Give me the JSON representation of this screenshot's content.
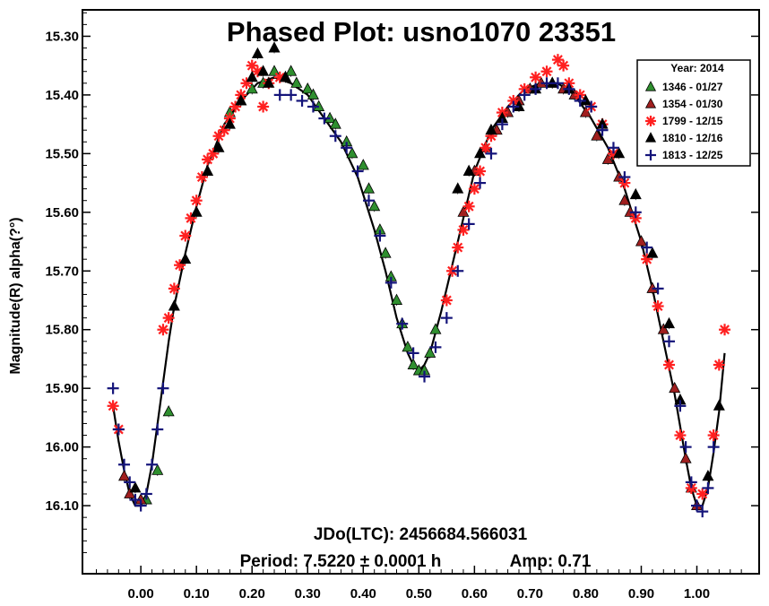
{
  "chart_data": {
    "type": "scatter",
    "title": "Phased Plot: usno1070 23351",
    "ylabel": "Magnitude(R) alpha(?°)",
    "xlabel": "",
    "xlim": [
      -0.105,
      1.112
    ],
    "ylim": [
      16.216,
      15.255
    ],
    "y_inverted": true,
    "grid": false,
    "legend_placement": "top-right",
    "x_ticks": [
      0.0,
      0.1,
      0.2,
      0.3,
      0.4,
      0.5,
      0.6,
      0.7,
      0.8,
      0.9,
      1.0
    ],
    "x_tick_labels": [
      "0.00",
      "0.10",
      "0.20",
      "0.30",
      "0.40",
      "0.50",
      "0.60",
      "0.70",
      "0.80",
      "0.90",
      "1.00"
    ],
    "y_ticks": [
      15.3,
      15.4,
      15.5,
      15.6,
      15.7,
      15.8,
      15.9,
      16.0,
      16.1
    ],
    "y_tick_labels": [
      "15.30",
      "15.40",
      "15.50",
      "15.60",
      "15.70",
      "15.80",
      "15.90",
      "16.00",
      "16.10"
    ],
    "legend_title": "Year: 2014",
    "annotations": {
      "epoch": "JDo(LTC): 2456684.566031",
      "period": "Period: 7.5220 ± 0.0001 h",
      "amp": "Amp: 0.71"
    },
    "fourier_curve": {
      "x": [
        -0.05,
        -0.04,
        -0.03,
        -0.02,
        -0.01,
        0.0,
        0.01,
        0.02,
        0.03,
        0.04,
        0.05,
        0.06,
        0.08,
        0.1,
        0.12,
        0.15,
        0.18,
        0.21,
        0.24,
        0.27,
        0.3,
        0.33,
        0.36,
        0.39,
        0.42,
        0.44,
        0.46,
        0.48,
        0.49,
        0.5,
        0.51,
        0.52,
        0.54,
        0.56,
        0.58,
        0.6,
        0.63,
        0.66,
        0.69,
        0.72,
        0.75,
        0.78,
        0.81,
        0.84,
        0.87,
        0.9,
        0.92,
        0.94,
        0.96,
        0.98,
        0.99,
        1.0,
        1.01,
        1.02,
        1.03,
        1.04,
        1.05
      ],
      "y": [
        15.93,
        15.99,
        16.04,
        16.08,
        16.1,
        16.1,
        16.08,
        16.03,
        15.96,
        15.89,
        15.82,
        15.76,
        15.67,
        15.59,
        15.52,
        15.45,
        15.41,
        15.38,
        15.37,
        15.38,
        15.4,
        15.44,
        15.48,
        15.54,
        15.63,
        15.7,
        15.78,
        15.84,
        15.86,
        15.87,
        15.86,
        15.84,
        15.77,
        15.69,
        15.61,
        15.53,
        15.46,
        15.42,
        15.39,
        15.38,
        15.38,
        15.4,
        15.44,
        15.49,
        15.56,
        15.65,
        15.73,
        15.82,
        15.91,
        16.02,
        16.07,
        16.1,
        16.1,
        16.07,
        16.01,
        15.94,
        15.84
      ]
    },
    "series": [
      {
        "name": "1346 - 01/27",
        "marker": "triangle",
        "color": "#2f8f2f",
        "x": [
          0.26,
          0.27,
          0.28,
          0.3,
          0.31,
          0.32,
          0.34,
          0.35,
          0.37,
          0.38,
          0.4,
          0.41,
          0.42,
          0.43,
          0.44,
          0.45,
          0.46,
          0.47,
          0.48,
          0.49,
          0.5,
          0.51,
          0.52,
          0.53,
          0.16,
          0.18,
          0.2,
          0.22,
          0.24,
          0.01,
          0.03,
          0.05
        ],
        "y": [
          15.37,
          15.36,
          15.38,
          15.39,
          15.4,
          15.42,
          15.44,
          15.45,
          15.48,
          15.5,
          15.52,
          15.56,
          15.59,
          15.63,
          15.67,
          15.71,
          15.75,
          15.79,
          15.83,
          15.86,
          15.87,
          15.87,
          15.84,
          15.8,
          15.43,
          15.41,
          15.39,
          15.38,
          15.36,
          16.09,
          16.04,
          15.94
        ]
      },
      {
        "name": "1354 - 01/30",
        "marker": "triangle",
        "color": "#a01f1f",
        "x": [
          0.58,
          0.6,
          0.62,
          0.64,
          0.66,
          0.68,
          0.7,
          0.72,
          0.74,
          0.76,
          0.78,
          0.8,
          0.82,
          0.84,
          0.86,
          0.87,
          0.88,
          0.9,
          0.92,
          0.94,
          0.96,
          0.98,
          0.99,
          1.0,
          -0.02,
          -0.03,
          0.0
        ],
        "y": [
          15.6,
          15.53,
          15.49,
          15.46,
          15.43,
          15.41,
          15.39,
          15.38,
          15.38,
          15.39,
          15.4,
          15.43,
          15.47,
          15.51,
          15.54,
          15.58,
          15.6,
          15.65,
          15.73,
          15.8,
          15.9,
          16.02,
          16.07,
          16.1,
          16.08,
          16.05,
          16.09
        ]
      },
      {
        "name": "1799 - 12/15",
        "marker": "star",
        "color": "#ff2020",
        "x": [
          -0.05,
          -0.04,
          0.04,
          0.05,
          0.06,
          0.07,
          0.08,
          0.09,
          0.1,
          0.11,
          0.12,
          0.13,
          0.14,
          0.15,
          0.16,
          0.17,
          0.18,
          0.19,
          0.2,
          0.21,
          0.22,
          0.23,
          0.25,
          0.55,
          0.56,
          0.57,
          0.58,
          0.59,
          0.6,
          0.61,
          0.62,
          0.63,
          0.65,
          0.67,
          0.69,
          0.71,
          0.73,
          0.75,
          0.76,
          0.77,
          0.79,
          0.81,
          0.83,
          0.85,
          0.87,
          0.89,
          0.91,
          0.93,
          0.95,
          0.97,
          0.99,
          1.01,
          1.03,
          1.04,
          1.05
        ],
        "y": [
          15.93,
          15.97,
          15.8,
          15.78,
          15.73,
          15.69,
          15.64,
          15.61,
          15.58,
          15.54,
          15.51,
          15.5,
          15.47,
          15.46,
          15.44,
          15.42,
          15.4,
          15.38,
          15.35,
          15.36,
          15.42,
          15.38,
          15.37,
          15.75,
          15.7,
          15.66,
          15.63,
          15.59,
          15.56,
          15.53,
          15.49,
          15.47,
          15.43,
          15.41,
          15.39,
          15.37,
          15.36,
          15.34,
          15.35,
          15.38,
          15.4,
          15.42,
          15.45,
          15.5,
          15.55,
          15.61,
          15.68,
          15.76,
          15.86,
          15.98,
          16.07,
          16.08,
          15.98,
          15.86,
          15.8
        ]
      },
      {
        "name": "1810 - 12/16",
        "marker": "triangle",
        "color": "#000000",
        "x": [
          0.06,
          0.08,
          0.1,
          0.12,
          0.14,
          0.16,
          0.18,
          0.2,
          0.21,
          0.22,
          0.23,
          0.24,
          0.26,
          0.57,
          0.59,
          0.61,
          0.63,
          0.65,
          0.68,
          0.71,
          0.74,
          0.77,
          0.8,
          0.83,
          0.86,
          0.89,
          0.92,
          0.95,
          0.97,
          1.02,
          1.04,
          -0.01
        ],
        "y": [
          15.76,
          15.68,
          15.6,
          15.53,
          15.49,
          15.45,
          15.41,
          15.37,
          15.33,
          15.36,
          15.38,
          15.32,
          15.37,
          15.56,
          15.53,
          15.5,
          15.46,
          15.44,
          15.42,
          15.39,
          15.38,
          15.39,
          15.41,
          15.45,
          15.5,
          15.57,
          15.67,
          15.79,
          15.92,
          16.05,
          15.93,
          16.07
        ]
      },
      {
        "name": "1813 - 12/25",
        "marker": "plus",
        "color": "#14147a",
        "x": [
          -0.05,
          -0.04,
          -0.03,
          -0.02,
          -0.01,
          0.0,
          0.01,
          0.02,
          0.03,
          0.04,
          0.25,
          0.27,
          0.29,
          0.31,
          0.33,
          0.35,
          0.37,
          0.39,
          0.41,
          0.43,
          0.45,
          0.47,
          0.49,
          0.51,
          0.53,
          0.55,
          0.57,
          0.59,
          0.61,
          0.63,
          0.65,
          0.67,
          0.69,
          0.71,
          0.73,
          0.75,
          0.77,
          0.79,
          0.81,
          0.83,
          0.85,
          0.87,
          0.89,
          0.91,
          0.93,
          0.95,
          0.97,
          0.98,
          0.99,
          1.0,
          1.01,
          1.02,
          1.03
        ],
        "y": [
          15.9,
          15.97,
          16.03,
          16.06,
          16.09,
          16.1,
          16.08,
          16.03,
          15.97,
          15.9,
          15.4,
          15.4,
          15.41,
          15.42,
          15.44,
          15.47,
          15.49,
          15.53,
          15.58,
          15.64,
          15.72,
          15.79,
          15.84,
          15.88,
          15.83,
          15.78,
          15.7,
          15.62,
          15.55,
          15.5,
          15.45,
          15.42,
          15.4,
          15.39,
          15.38,
          15.38,
          15.39,
          15.41,
          15.42,
          15.46,
          15.49,
          15.54,
          15.6,
          15.66,
          15.73,
          15.82,
          15.93,
          16.0,
          16.06,
          16.1,
          16.11,
          16.07,
          16.0
        ]
      }
    ]
  }
}
